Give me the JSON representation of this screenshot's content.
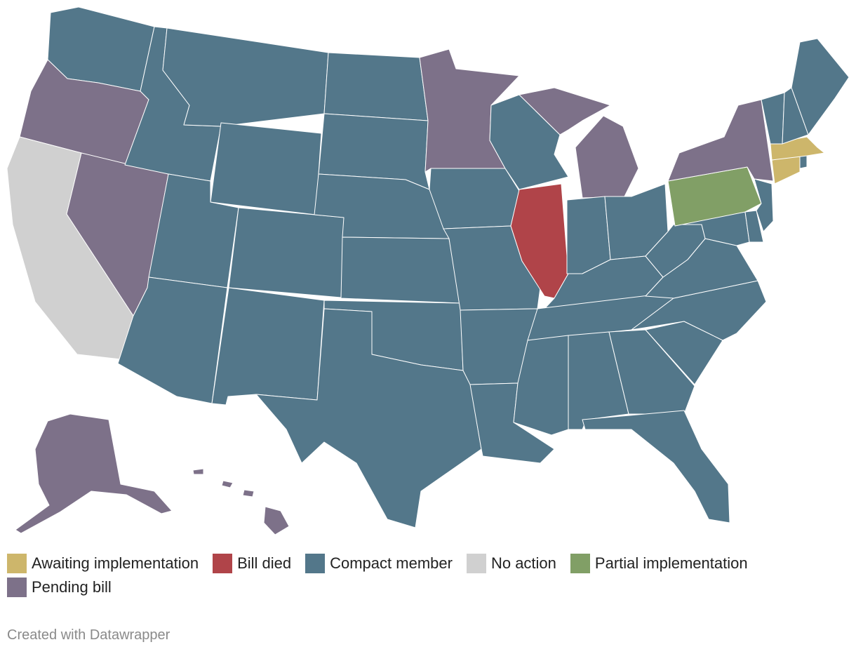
{
  "colors": {
    "awaiting": "#cdb66b",
    "died": "#b04449",
    "compact": "#53778a",
    "none": "#d0d0d0",
    "partial": "#819f66",
    "pending": "#7d7189"
  },
  "legend": {
    "items": [
      {
        "label": "Awaiting implementation",
        "status": "awaiting"
      },
      {
        "label": "Bill died",
        "status": "died"
      },
      {
        "label": "Compact member",
        "status": "compact"
      },
      {
        "label": "No action",
        "status": "none"
      },
      {
        "label": "Partial implementation",
        "status": "partial"
      },
      {
        "label": "Pending bill",
        "status": "pending"
      }
    ]
  },
  "states": {
    "WA": "compact",
    "OR": "pending",
    "CA": "none",
    "NV": "pending",
    "ID": "compact",
    "MT": "compact",
    "WY": "compact",
    "UT": "compact",
    "AZ": "compact",
    "CO": "compact",
    "NM": "compact",
    "ND": "compact",
    "SD": "compact",
    "NE": "compact",
    "KS": "compact",
    "OK": "compact",
    "TX": "compact",
    "MN": "pending",
    "IA": "compact",
    "MO": "compact",
    "AR": "compact",
    "LA": "compact",
    "WI": "compact",
    "IL": "died",
    "MI": "pending",
    "IN": "compact",
    "OH": "compact",
    "KY": "compact",
    "TN": "compact",
    "MS": "compact",
    "AL": "compact",
    "GA": "compact",
    "FL": "compact",
    "SC": "compact",
    "NC": "compact",
    "VA": "compact",
    "WV": "compact",
    "MD": "compact",
    "DE": "compact",
    "PA": "partial",
    "NJ": "compact",
    "NY": "pending",
    "CT": "awaiting",
    "RI": "compact",
    "MA": "awaiting",
    "VT": "compact",
    "NH": "compact",
    "ME": "compact",
    "AK": "pending",
    "HI": "pending"
  },
  "credit": "Created with Datawrapper"
}
